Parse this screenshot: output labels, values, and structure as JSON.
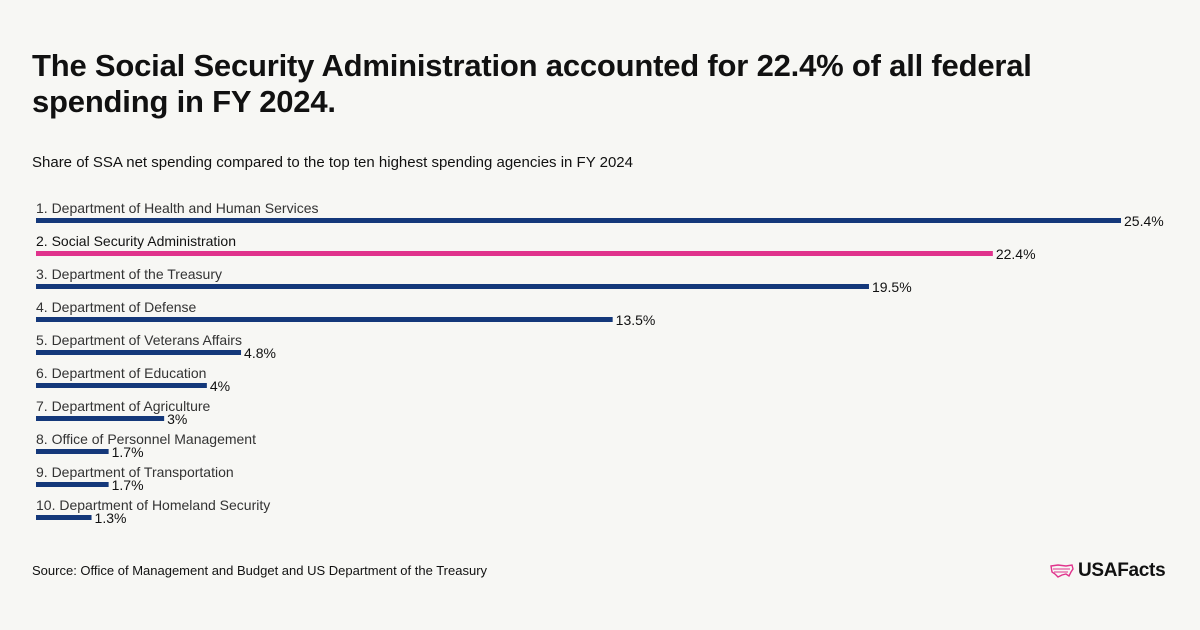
{
  "title": "The Social Security Administration accounted for 22.4% of all federal spending in FY 2024.",
  "subtitle": "Share of SSA net spending compared to the top ten highest spending agencies in FY 2024",
  "source": "Source: Office of Management and Budget and US Department of the Treasury",
  "logo": {
    "text": "USAFacts",
    "icon": "us-map-icon"
  },
  "colors": {
    "default": "#14387a",
    "highlight": "#e0338c",
    "background": "#f7f7f4"
  },
  "chart_data": {
    "type": "bar",
    "orientation": "horizontal",
    "categories": [
      "1. Department of Health and Human Services",
      "2. Social Security Administration",
      "3. Department of the Treasury",
      "4. Department of Defense",
      "5. Department of Veterans Affairs",
      "6. Department of Education",
      "7. Department of Agriculture",
      "8. Office of Personnel Management",
      "9. Department of Transportation",
      "10. Department of Homeland Security"
    ],
    "values": [
      25.4,
      22.4,
      19.5,
      13.5,
      4.8,
      4,
      3,
      1.7,
      1.7,
      1.3
    ],
    "value_labels": [
      "25.4%",
      "22.4%",
      "19.5%",
      "13.5%",
      "4.8%",
      "4%",
      "3%",
      "1.7%",
      "1.7%",
      "1.3%"
    ],
    "highlight_index": 1,
    "xlim": [
      0,
      25.4
    ],
    "grid": false,
    "legend": "none"
  }
}
